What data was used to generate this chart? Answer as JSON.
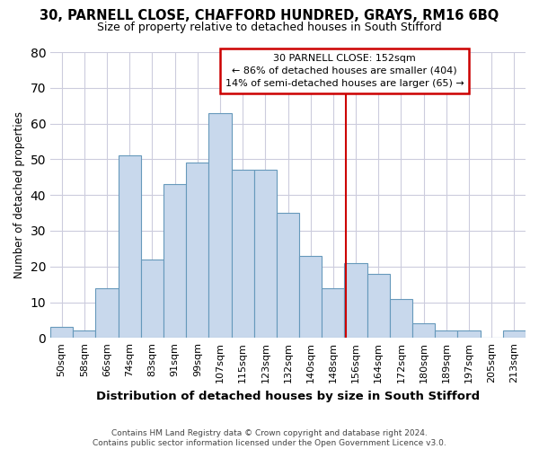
{
  "title": "30, PARNELL CLOSE, CHAFFORD HUNDRED, GRAYS, RM16 6BQ",
  "subtitle": "Size of property relative to detached houses in South Stifford",
  "xlabel": "Distribution of detached houses by size in South Stifford",
  "ylabel": "Number of detached properties",
  "footer_line1": "Contains HM Land Registry data © Crown copyright and database right 2024.",
  "footer_line2": "Contains public sector information licensed under the Open Government Licence v3.0.",
  "categories": [
    "50sqm",
    "58sqm",
    "66sqm",
    "74sqm",
    "83sqm",
    "91sqm",
    "99sqm",
    "107sqm",
    "115sqm",
    "123sqm",
    "132sqm",
    "140sqm",
    "148sqm",
    "156sqm",
    "164sqm",
    "172sqm",
    "180sqm",
    "189sqm",
    "197sqm",
    "205sqm",
    "213sqm"
  ],
  "values": [
    3,
    2,
    14,
    51,
    22,
    43,
    49,
    63,
    47,
    47,
    35,
    23,
    14,
    21,
    18,
    11,
    4,
    2,
    2,
    0,
    2
  ],
  "bar_color": "#c8d8ec",
  "bar_edge_color": "#6699bb",
  "grid_color": "#ccccdd",
  "vline_index": 12.55,
  "vline_color": "#cc0000",
  "annotation_text": "30 PARNELL CLOSE: 152sqm\n← 86% of detached houses are smaller (404)\n14% of semi-detached houses are larger (65) →",
  "ylim": [
    0,
    80
  ],
  "yticks": [
    0,
    10,
    20,
    30,
    40,
    50,
    60,
    70,
    80
  ],
  "bg_color": "#ffffff",
  "title_fontsize": 10.5,
  "subtitle_fontsize": 9.0,
  "xlabel_fontsize": 9.5,
  "ylabel_fontsize": 8.5,
  "tick_fontsize": 8.0,
  "annot_fontsize": 8.0,
  "footer_fontsize": 6.5
}
